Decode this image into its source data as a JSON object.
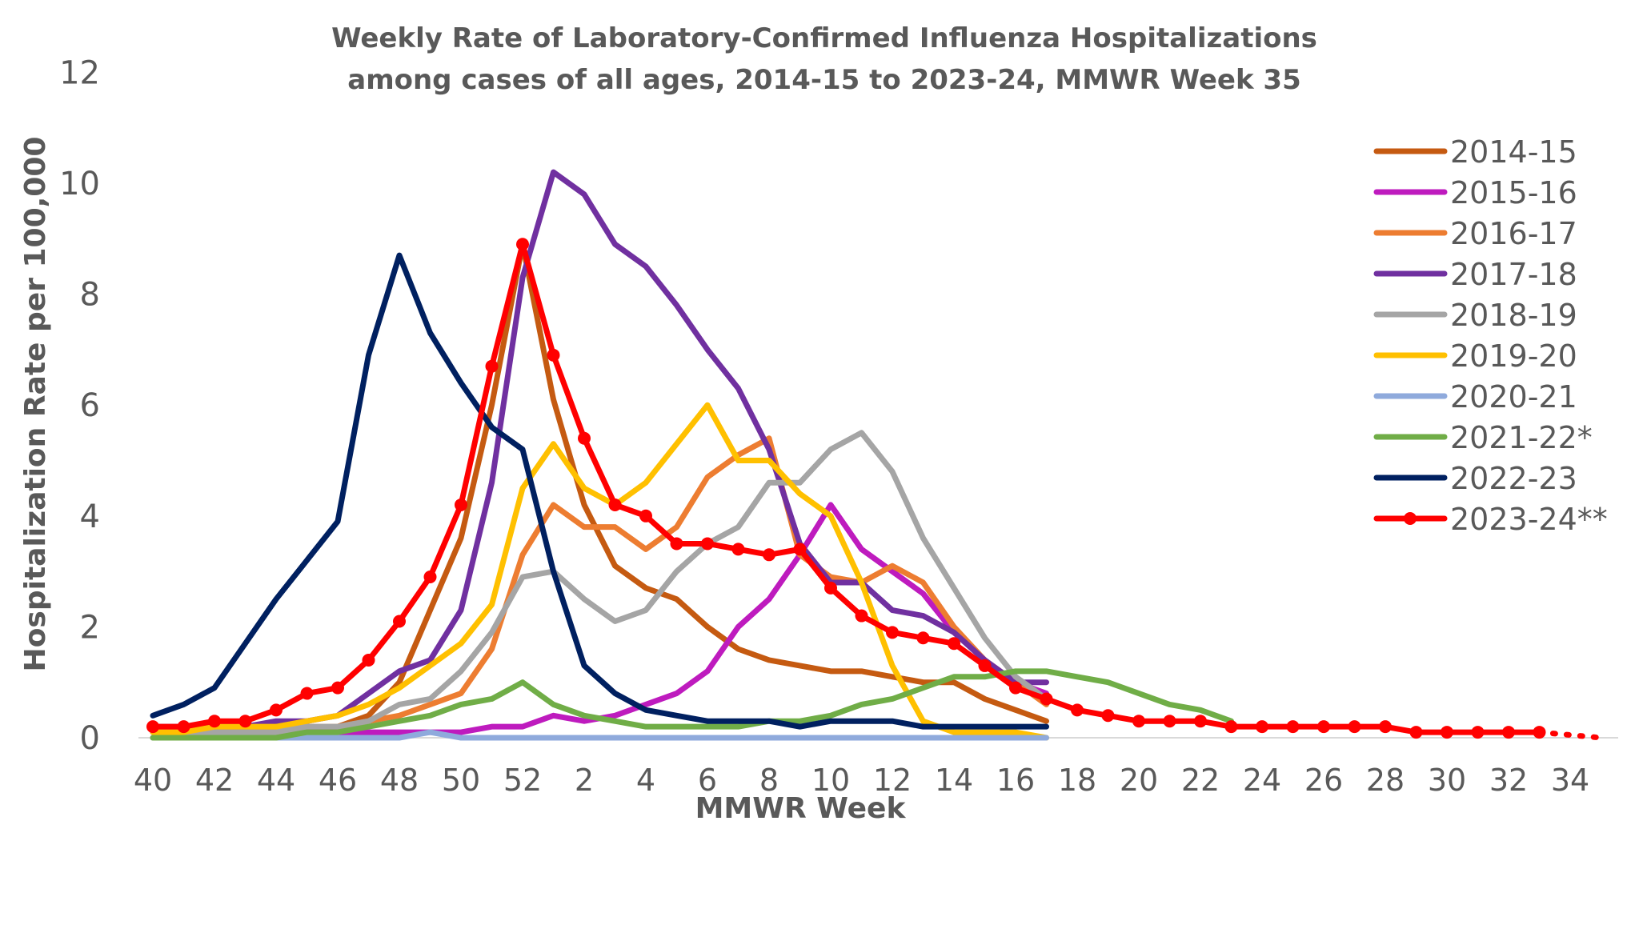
{
  "chart_data": {
    "type": "line",
    "title": "Weekly Rate of Laboratory-Confirmed Influenza Hospitalizations",
    "subtitle": "among cases of all ages, 2014-15 to 2023-24, MMWR Week 35",
    "xlabel": "MMWR Week",
    "ylabel": "Hospitalization Rate per 100,000",
    "ylim": [
      0,
      12
    ],
    "yticks": [
      "0",
      "2",
      "4",
      "6",
      "8",
      "10",
      "12"
    ],
    "weeks": [
      40,
      41,
      42,
      43,
      44,
      45,
      46,
      47,
      48,
      49,
      50,
      51,
      52,
      1,
      2,
      3,
      4,
      5,
      6,
      7,
      8,
      9,
      10,
      11,
      12,
      13,
      14,
      15,
      16,
      17,
      18,
      19,
      20,
      21,
      22,
      23,
      24,
      25,
      26,
      27,
      28,
      29,
      30,
      31,
      32,
      33,
      34,
      35
    ],
    "xticks": [
      "40",
      "42",
      "44",
      "46",
      "48",
      "50",
      "52",
      "2",
      "4",
      "6",
      "8",
      "10",
      "12",
      "14",
      "16",
      "18",
      "20",
      "22",
      "24",
      "26",
      "28",
      "30",
      "32",
      "34"
    ],
    "grid": false,
    "legend_position": "right",
    "series": [
      {
        "name": "2014-15",
        "color": "#C55A11",
        "values": [
          0.1,
          0.1,
          0.1,
          0.1,
          0.1,
          0.1,
          0.2,
          0.4,
          1.0,
          2.3,
          3.6,
          6.0,
          8.9,
          6.1,
          4.2,
          3.1,
          2.7,
          2.5,
          2.0,
          1.6,
          1.4,
          1.3,
          1.2,
          1.2,
          1.1,
          1.0,
          1.0,
          0.7,
          0.5,
          0.3
        ]
      },
      {
        "name": "2015-16",
        "color": "#BE1BBE",
        "values": [
          0.1,
          0.1,
          0.1,
          0.1,
          0.1,
          0.1,
          0.1,
          0.1,
          0.1,
          0.1,
          0.1,
          0.2,
          0.2,
          0.4,
          0.3,
          0.4,
          0.6,
          0.8,
          1.2,
          2.0,
          2.5,
          3.3,
          4.2,
          3.4,
          3.0,
          2.6,
          1.9,
          1.4,
          1.0,
          0.8
        ]
      },
      {
        "name": "2016-17",
        "color": "#ED7D31",
        "values": [
          0.0,
          0.0,
          0.1,
          0.1,
          0.1,
          0.2,
          0.2,
          0.3,
          0.4,
          0.6,
          0.8,
          1.6,
          3.3,
          4.2,
          3.8,
          3.8,
          3.4,
          3.8,
          4.7,
          5.1,
          5.4,
          3.3,
          2.9,
          2.8,
          3.1,
          2.8,
          2.0,
          1.4,
          1.0,
          0.6
        ]
      },
      {
        "name": "2017-18",
        "color": "#7030A0",
        "values": [
          0.2,
          0.2,
          0.2,
          0.2,
          0.3,
          0.3,
          0.4,
          0.8,
          1.2,
          1.4,
          2.3,
          4.6,
          8.3,
          10.2,
          9.8,
          8.9,
          8.5,
          7.8,
          7.0,
          6.3,
          5.2,
          3.5,
          2.8,
          2.8,
          2.3,
          2.2,
          1.9,
          1.4,
          1.0,
          1.0
        ]
      },
      {
        "name": "2018-19",
        "color": "#A5A5A5",
        "values": [
          0.1,
          0.1,
          0.1,
          0.1,
          0.1,
          0.2,
          0.2,
          0.3,
          0.6,
          0.7,
          1.2,
          1.9,
          2.9,
          3.0,
          2.5,
          2.1,
          2.3,
          3.0,
          3.5,
          3.8,
          4.6,
          4.6,
          5.2,
          5.5,
          4.8,
          3.6,
          2.7,
          1.8,
          1.1,
          0.7
        ]
      },
      {
        "name": "2019-20",
        "color": "#FFC000",
        "values": [
          0.1,
          0.1,
          0.2,
          0.2,
          0.2,
          0.3,
          0.4,
          0.6,
          0.9,
          1.3,
          1.7,
          2.4,
          4.5,
          5.3,
          4.5,
          4.2,
          4.6,
          5.3,
          6.0,
          5.0,
          5.0,
          4.4,
          4.0,
          2.8,
          1.3,
          0.3,
          0.1,
          0.1,
          0.1,
          0.0
        ]
      },
      {
        "name": "2020-21",
        "color": "#8FAADC",
        "values": [
          0,
          0,
          0,
          0,
          0,
          0,
          0,
          0,
          0,
          0.1,
          0,
          0,
          0,
          0,
          0,
          0,
          0,
          0,
          0,
          0,
          0,
          0,
          0,
          0,
          0,
          0,
          0,
          0,
          0,
          0
        ]
      },
      {
        "name": "2021-22*",
        "color": "#70AD47",
        "values": [
          0.0,
          0.0,
          0.0,
          0.0,
          0.0,
          0.1,
          0.1,
          0.2,
          0.3,
          0.4,
          0.6,
          0.7,
          1.0,
          0.6,
          0.4,
          0.3,
          0.2,
          0.2,
          0.2,
          0.2,
          0.3,
          0.3,
          0.4,
          0.6,
          0.7,
          0.9,
          1.1,
          1.1,
          1.2,
          1.2,
          1.1,
          1.0,
          0.8,
          0.6,
          0.5,
          0.3
        ]
      },
      {
        "name": "2022-23",
        "color": "#002060",
        "values": [
          0.4,
          0.6,
          0.9,
          1.7,
          2.5,
          3.2,
          3.9,
          6.9,
          8.7,
          7.3,
          6.4,
          5.6,
          5.2,
          3.0,
          1.3,
          0.8,
          0.5,
          0.4,
          0.3,
          0.3,
          0.3,
          0.2,
          0.3,
          0.3,
          0.3,
          0.2,
          0.2,
          0.2,
          0.2,
          0.2
        ]
      },
      {
        "name": "2023-24**",
        "color": "#FF0000",
        "markers": true,
        "values": [
          0.2,
          0.2,
          0.3,
          0.3,
          0.5,
          0.8,
          0.9,
          1.4,
          2.1,
          2.9,
          4.2,
          6.7,
          8.9,
          6.9,
          5.4,
          4.2,
          4.0,
          3.5,
          3.5,
          3.4,
          3.3,
          3.4,
          2.7,
          2.2,
          1.9,
          1.8,
          1.7,
          1.3,
          0.9,
          0.7,
          0.5,
          0.4,
          0.3,
          0.3,
          0.3,
          0.2,
          0.2,
          0.2,
          0.2,
          0.2,
          0.2,
          0.1,
          0.1,
          0.1,
          0.1,
          0.1
        ],
        "dotted_values": [
          0.1,
          0.05,
          0.0
        ]
      }
    ]
  }
}
